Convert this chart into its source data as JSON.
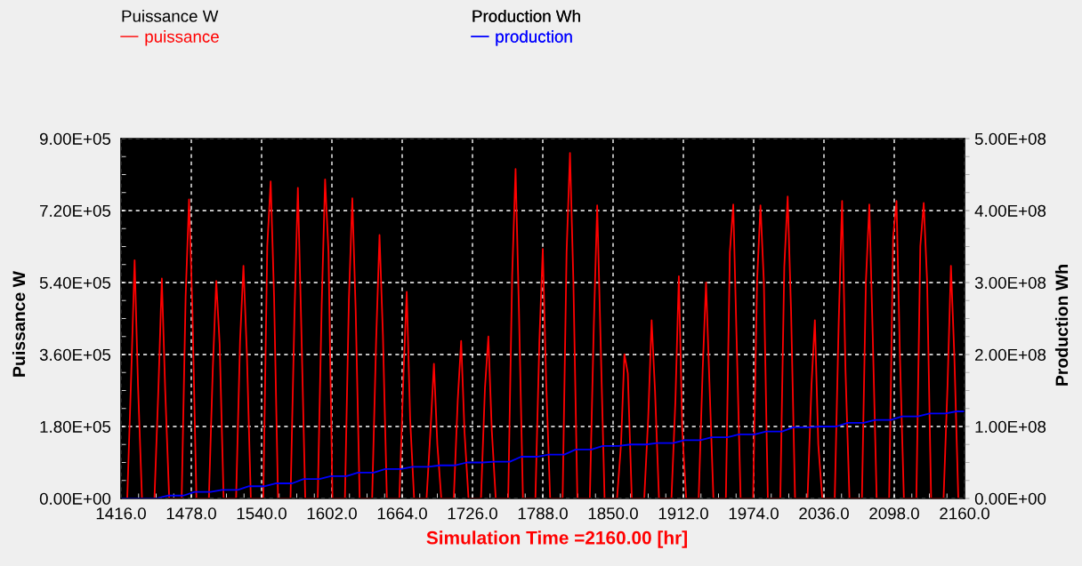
{
  "chart_data": {
    "type": "line",
    "xlabel": "Simulation Time =2160.00 [hr]",
    "ylabel": "Puissance W",
    "y2label": "Production Wh",
    "xlim": [
      1416,
      2160
    ],
    "xticks": [
      {
        "value": 1416,
        "label": "1416.0"
      },
      {
        "value": 1478,
        "label": "1478.0"
      },
      {
        "value": 1540,
        "label": "1540.0"
      },
      {
        "value": 1602,
        "label": "1602.0"
      },
      {
        "value": 1664,
        "label": "1664.0"
      },
      {
        "value": 1726,
        "label": "1726.0"
      },
      {
        "value": 1788,
        "label": "1788.0"
      },
      {
        "value": 1850,
        "label": "1850.0"
      },
      {
        "value": 1912,
        "label": "1912.0"
      },
      {
        "value": 1974,
        "label": "1974.0"
      },
      {
        "value": 2036,
        "label": "2036.0"
      },
      {
        "value": 2098,
        "label": "2098.0"
      },
      {
        "value": 2160,
        "label": "2160.0"
      }
    ],
    "ylim": [
      0,
      900000
    ],
    "yticks": [
      {
        "value": 0,
        "label": "0.00E+00"
      },
      {
        "value": 180000,
        "label": "1.80E+05"
      },
      {
        "value": 360000,
        "label": "3.60E+05"
      },
      {
        "value": 540000,
        "label": "5.40E+05"
      },
      {
        "value": 720000,
        "label": "7.20E+05"
      },
      {
        "value": 900000,
        "label": "9.00E+05"
      }
    ],
    "y2lim": [
      0,
      500000000
    ],
    "y2ticks": [
      {
        "value": 0,
        "label": "0.00E+00"
      },
      {
        "value": 100000000,
        "label": "1.00E+08"
      },
      {
        "value": 200000000,
        "label": "2.00E+08"
      },
      {
        "value": 300000000,
        "label": "3.00E+08"
      },
      {
        "value": 400000000,
        "label": "4.00E+08"
      },
      {
        "value": 500000000,
        "label": "5.00E+08"
      }
    ],
    "grid": true,
    "legend": "top left",
    "series": [
      {
        "name": "puissance",
        "color": "#ff0000",
        "x": [
          1421.5,
          1425,
          1428,
          1431,
          1434.5,
          1445.5,
          1449,
          1452,
          1455,
          1458.5,
          1469.5,
          1473,
          1476,
          1479,
          1482.5,
          1493.5,
          1497,
          1500,
          1503,
          1506.5,
          1517.5,
          1521,
          1524,
          1527,
          1530.5,
          1541.5,
          1545,
          1548,
          1551,
          1554.5,
          1565.5,
          1569,
          1572,
          1575,
          1578.5,
          1589.5,
          1593,
          1596,
          1599,
          1602.5,
          1613.5,
          1617,
          1620,
          1623,
          1626.5,
          1637.5,
          1641,
          1644,
          1647,
          1650.5,
          1661.5,
          1665,
          1668,
          1671,
          1674.5,
          1685.5,
          1689,
          1692,
          1695,
          1698.5,
          1709.5,
          1713,
          1716,
          1719,
          1722.5,
          1733.5,
          1737,
          1740,
          1743,
          1746.5,
          1757.5,
          1761,
          1764,
          1767,
          1770.5,
          1781.5,
          1785,
          1788,
          1791,
          1794.5,
          1805.5,
          1809,
          1812,
          1815,
          1818.5,
          1829.5,
          1833,
          1836,
          1839,
          1842.5,
          1853.5,
          1857,
          1860,
          1863,
          1866.5,
          1877.5,
          1881,
          1884,
          1887,
          1890.5,
          1901.5,
          1905,
          1908,
          1911,
          1914.5,
          1925.5,
          1929,
          1932,
          1935,
          1938.5,
          1949.5,
          1953,
          1956,
          1959,
          1962.5,
          1973.5,
          1977,
          1980,
          1983,
          1986.5,
          1997.5,
          2001,
          2004,
          2007,
          2010.5,
          2021.5,
          2025,
          2028,
          2031,
          2034.5,
          2045.5,
          2049,
          2052,
          2055,
          2058.5,
          2069.5,
          2073,
          2076,
          2079,
          2082.5,
          2093.5,
          2097,
          2100,
          2103,
          2106.5,
          2117.5,
          2121,
          2124,
          2127,
          2130.5,
          2141.5,
          2145,
          2148,
          2151,
          2154.5
        ],
        "values": [
          0,
          309000,
          596000,
          283000,
          0,
          0,
          276000,
          550000,
          269000,
          0,
          0,
          505000,
          748000,
          470000,
          0,
          0,
          328000,
          544000,
          387000,
          0,
          0,
          394000,
          582000,
          365000,
          0,
          0,
          631000,
          793000,
          505000,
          0,
          0,
          461000,
          777000,
          431000,
          0,
          0,
          483000,
          798000,
          616000,
          0,
          0,
          498000,
          751000,
          468000,
          0,
          0,
          394000,
          659000,
          409000,
          0,
          0,
          298000,
          517000,
          200000,
          0,
          0,
          172000,
          337000,
          135000,
          0,
          0,
          246000,
          394000,
          165000,
          0,
          0,
          276000,
          405000,
          172000,
          0,
          0,
          557000,
          824000,
          468000,
          0,
          0,
          394000,
          624000,
          291000,
          0,
          0,
          616000,
          864000,
          542000,
          0,
          0,
          431000,
          733000,
          394000,
          0,
          0,
          135000,
          361000,
          313000,
          0,
          0,
          202000,
          446000,
          269000,
          0,
          0,
          246000,
          556000,
          172000,
          0,
          0,
          320000,
          540000,
          290000,
          0,
          0,
          616000,
          735000,
          394000,
          0,
          0,
          542000,
          733000,
          542000,
          0,
          0,
          579000,
          755000,
          468000,
          0,
          0,
          283000,
          446000,
          135000,
          0,
          0,
          439000,
          744000,
          320000,
          0,
          0,
          542000,
          735000,
          409000,
          0,
          0,
          653000,
          744000,
          357000,
          0,
          0,
          631000,
          739000,
          542000,
          0,
          0,
          283000,
          582000,
          357000,
          0
        ]
      },
      {
        "name": "production",
        "color": "#0000ff",
        "axis": "y2",
        "x": [
          1416,
          1447,
          1457,
          1471,
          1481,
          1495,
          1505,
          1519,
          1529,
          1543,
          1553,
          1567,
          1577,
          1591,
          1601,
          1615,
          1625,
          1639,
          1649,
          1663,
          1673,
          1687,
          1697,
          1711,
          1721,
          1735,
          1745,
          1759,
          1769,
          1783,
          1793,
          1807,
          1817,
          1831,
          1841,
          1855,
          1865,
          1879,
          1889,
          1903,
          1913,
          1927,
          1937,
          1951,
          1961,
          1975,
          1985,
          1999,
          2009,
          2023,
          2033,
          2047,
          2057,
          2071,
          2081,
          2095,
          2105,
          2119,
          2129,
          2143,
          2153,
          2160
        ],
        "values": [
          0,
          0,
          4000000,
          4000000,
          9000000,
          9000000,
          12000000,
          12000000,
          17000000,
          17000000,
          21000000,
          21000000,
          27000000,
          27000000,
          31000000,
          31000000,
          36000000,
          36000000,
          41000000,
          41000000,
          44000000,
          44000000,
          46000000,
          46000000,
          50000000,
          50000000,
          51000000,
          51000000,
          58000000,
          58000000,
          61000000,
          61000000,
          68000000,
          68000000,
          73000000,
          73000000,
          75000000,
          75000000,
          77000000,
          77000000,
          81000000,
          81000000,
          85000000,
          85000000,
          89000000,
          89000000,
          93000000,
          93000000,
          99000000,
          99000000,
          100000000,
          100000000,
          105000000,
          105000000,
          109000000,
          109000000,
          114000000,
          114000000,
          118000000,
          118000000,
          121000000,
          121000000
        ]
      }
    ]
  }
}
